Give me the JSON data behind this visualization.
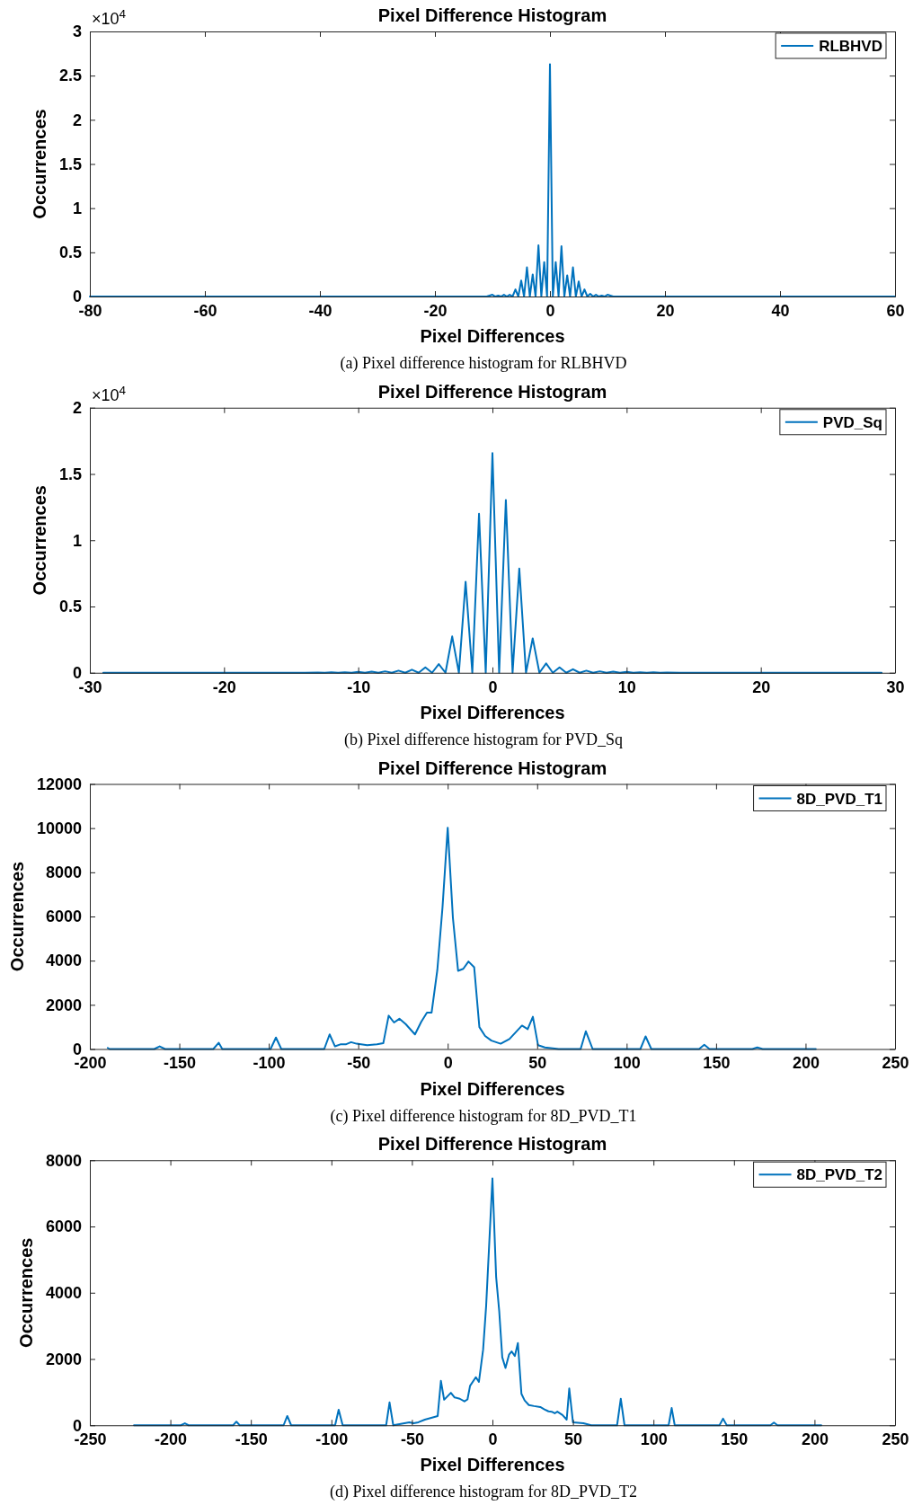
{
  "chart_data": [
    {
      "type": "line",
      "title": "Pixel Difference Histogram",
      "xlabel": "Pixel Differences",
      "ylabel": "Occurrences",
      "annotations": [
        "×10$^{4}$",
        "(a) Pixel difference histogram for RLBHVD"
      ],
      "xlim": [
        -80,
        60
      ],
      "xticks": [
        -80,
        -60,
        -40,
        -20,
        0,
        20,
        40,
        60
      ],
      "ylim": [
        0,
        3
      ],
      "yticks": [
        0,
        0.5,
        1,
        1.5,
        2,
        2.5,
        3
      ],
      "legend": "top right",
      "grid": false,
      "marker": "none",
      "line_style": "solid",
      "series": [
        {
          "name": "RLBHVD",
          "color": "#0072bd",
          "x": [
            -80,
            -20,
            -11,
            -10,
            -9.5,
            -9,
            -8.5,
            -8,
            -7.5,
            -7,
            -6.5,
            -6,
            -5.5,
            -5,
            -4.5,
            -4,
            -3.5,
            -3,
            -2.5,
            -2,
            -1.5,
            -1,
            -0.5,
            0,
            0.5,
            1,
            1.5,
            2,
            2.5,
            3,
            3.5,
            4,
            4.5,
            5,
            5.5,
            6,
            6.5,
            7,
            7.5,
            8,
            8.5,
            9,
            9.5,
            10,
            11,
            20,
            60
          ],
          "values": [
            0,
            0,
            0,
            0.02,
            0,
            0.01,
            0,
            0.02,
            0,
            0.02,
            0,
            0.08,
            0,
            0.18,
            0,
            0.33,
            0,
            0.25,
            0,
            0.58,
            0,
            0.39,
            0,
            2.63,
            0,
            0.39,
            0,
            0.57,
            0,
            0.24,
            0,
            0.33,
            0,
            0.17,
            0,
            0.08,
            0,
            0.03,
            0,
            0.02,
            0,
            0.01,
            0,
            0.02,
            0,
            0,
            0
          ]
        }
      ]
    },
    {
      "type": "line",
      "title": "Pixel Difference Histogram",
      "xlabel": "Pixel Differences",
      "ylabel": "Occurrences",
      "annotations": [
        "×10$^{4}$",
        "(b) Pixel difference histogram for PVD_Sq"
      ],
      "xlim": [
        -30,
        30
      ],
      "xticks": [
        -30,
        -20,
        -10,
        0,
        10,
        20,
        30
      ],
      "ylim": [
        0,
        2
      ],
      "yticks": [
        0,
        0.5,
        1,
        1.5,
        2
      ],
      "legend": "top right",
      "grid": false,
      "marker": "none",
      "line_style": "solid",
      "series": [
        {
          "name": "PVD_Sq",
          "color": "#0072bd",
          "x": [
            -29,
            -14,
            -13,
            -12.5,
            -12,
            -11.5,
            -11,
            -10.5,
            -10,
            -9.5,
            -9,
            -8.5,
            -8,
            -7.5,
            -7,
            -6.5,
            -6,
            -5.5,
            -5,
            -4.5,
            -4,
            -3.5,
            -3,
            -2.5,
            -2,
            -1.5,
            -1,
            -0.5,
            0,
            0.5,
            1,
            1.5,
            2,
            2.5,
            3,
            3.5,
            4,
            4.5,
            5,
            5.5,
            6,
            6.5,
            7,
            7.5,
            8,
            8.5,
            9,
            9.5,
            10,
            10.5,
            11,
            11.5,
            12,
            12.5,
            13,
            14,
            29
          ],
          "values": [
            0,
            0,
            0.002,
            0,
            0.003,
            0,
            0.004,
            0,
            0.006,
            0,
            0.009,
            0,
            0.011,
            0,
            0.016,
            0,
            0.023,
            0,
            0.041,
            0,
            0.065,
            0,
            0.274,
            0,
            0.687,
            0,
            1.2,
            0,
            1.657,
            0,
            1.304,
            0,
            0.786,
            0,
            0.26,
            0,
            0.07,
            0,
            0.041,
            0,
            0.027,
            0,
            0.016,
            0,
            0.011,
            0,
            0.009,
            0,
            0.006,
            0,
            0.004,
            0,
            0.003,
            0,
            0.002,
            0,
            0
          ]
        }
      ]
    },
    {
      "type": "line",
      "title": "Pixel Difference Histogram",
      "xlabel": "Pixel Differences",
      "ylabel": "Occurrences",
      "annotations": [
        "(c) Pixel difference histogram for 8D_PVD_T1"
      ],
      "xlim": [
        -200,
        250
      ],
      "xticks": [
        -200,
        -150,
        -100,
        -50,
        0,
        50,
        100,
        150,
        200,
        250
      ],
      "ylim": [
        0,
        12000
      ],
      "yticks": [
        0,
        2000,
        4000,
        6000,
        8000,
        10000,
        12000
      ],
      "legend": "top right",
      "grid": false,
      "marker": "none",
      "line_style": "solid",
      "series": [
        {
          "name": "8D_PVD_T1",
          "color": "#0072bd",
          "x": [
            -190,
            -189,
            -164,
            -161,
            -158,
            -131,
            -128,
            -126,
            -99,
            -96,
            -93,
            -69,
            -66,
            -63,
            -60,
            -57,
            -54,
            -51,
            -45,
            -39.5,
            -36,
            -33,
            -30,
            -27,
            -23.5,
            -18.3,
            -14.8,
            -11.6,
            -9,
            -5.8,
            -2.9,
            0,
            2.9,
            5.8,
            8.7,
            11.6,
            14.8,
            17.7,
            20.9,
            24.4,
            29.6,
            34.5,
            41.5,
            44.7,
            47.6,
            50.5,
            54.3,
            62,
            74.3,
            77.2,
            81,
            107.7,
            110.6,
            113.8,
            140.5,
            143.4,
            146.3,
            170.3,
            173,
            176,
            205.7
          ],
          "values": [
            50,
            0,
            0,
            120,
            0,
            0,
            280,
            0,
            0,
            520,
            0,
            0,
            660,
            120,
            210,
            210,
            310,
            240,
            170,
            210,
            260,
            1510,
            1200,
            1370,
            1130,
            660,
            1230,
            1650,
            1650,
            3580,
            6420,
            10020,
            5940,
            3540,
            3630,
            3960,
            3700,
            990,
            590,
            380,
            240,
            450,
            1060,
            900,
            1460,
            170,
            70,
            0,
            0,
            800,
            0,
            0,
            570,
            0,
            0,
            190,
            0,
            0,
            70,
            0,
            0
          ]
        }
      ]
    },
    {
      "type": "line",
      "title": "Pixel Difference Histogram",
      "xlabel": "Pixel Differences",
      "ylabel": "Occurrences",
      "annotations": [
        "(d) Pixel difference histogram for 8D_PVD_T2"
      ],
      "xlim": [
        -250,
        250
      ],
      "xticks": [
        -250,
        -200,
        -150,
        -100,
        -50,
        0,
        50,
        100,
        150,
        200,
        250
      ],
      "ylim": [
        0,
        8000
      ],
      "yticks": [
        0,
        2000,
        4000,
        6000,
        8000
      ],
      "legend": "top right",
      "grid": false,
      "marker": "none",
      "line_style": "solid",
      "series": [
        {
          "name": "8D_PVD_T2",
          "color": "#0072bd",
          "x": [
            -222.6,
            -193.5,
            -191,
            -188.7,
            -161,
            -159,
            -157,
            -129.7,
            -127.4,
            -125,
            -97.7,
            -95.5,
            -93,
            -66,
            -63.9,
            -61.6,
            -51.6,
            -49,
            -46,
            -42,
            -34,
            -32,
            -30,
            -25.8,
            -23.5,
            -20.3,
            -17.4,
            -15.5,
            -13.9,
            -10.3,
            -8.4,
            -5.8,
            -3.9,
            0,
            2.3,
            4.2,
            6.1,
            8.1,
            10.3,
            11.9,
            13.9,
            15.8,
            18,
            20,
            22.6,
            25.8,
            29.7,
            32.3,
            34.8,
            36.8,
            38.7,
            40.3,
            43.5,
            46.1,
            47.7,
            50,
            56.5,
            61.3,
            77.4,
            79.7,
            82,
            109.4,
            111.3,
            113.2,
            141,
            143.2,
            145.5,
            172.6,
            174.8,
            177,
            204.2
          ],
          "values": [
            0,
            0,
            60,
            0,
            0,
            110,
            0,
            0,
            280,
            0,
            0,
            470,
            0,
            0,
            690,
            0,
            90,
            60,
            90,
            170,
            280,
            1340,
            770,
            980,
            840,
            800,
            720,
            780,
            1190,
            1450,
            1310,
            2280,
            3610,
            7450,
            4470,
            3450,
            2050,
            1730,
            2130,
            2230,
            2090,
            2480,
            950,
            750,
            610,
            580,
            550,
            480,
            420,
            410,
            360,
            410,
            310,
            170,
            1110,
            90,
            60,
            0,
            0,
            800,
            0,
            0,
            520,
            0,
            0,
            200,
            0,
            0,
            80,
            0,
            0
          ]
        }
      ]
    }
  ]
}
